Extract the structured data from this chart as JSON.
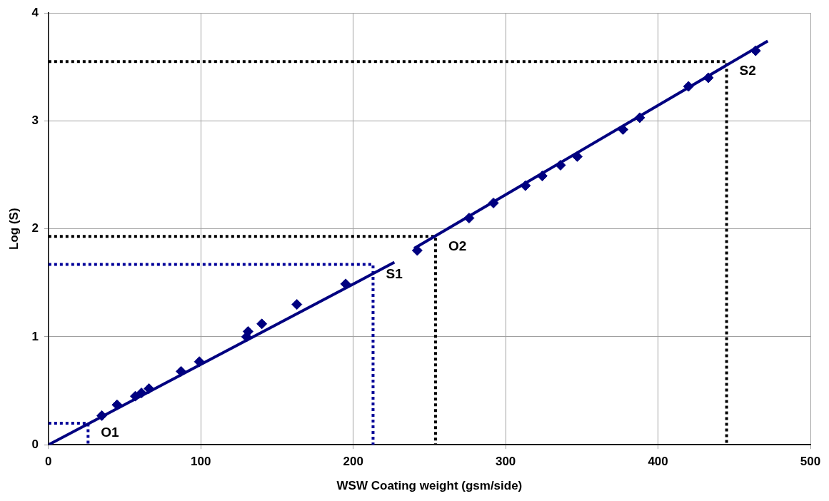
{
  "chart_data": {
    "type": "scatter",
    "xlabel": "WSW Coating weight (gsm/side)",
    "ylabel": "Log (S)",
    "xlim": [
      0,
      500
    ],
    "xticks": [
      0,
      100,
      200,
      300,
      400,
      500
    ],
    "ylim": [
      0,
      4
    ],
    "yticks": [
      0,
      1,
      2,
      3,
      4
    ],
    "grid": true,
    "legend": false,
    "series": [
      {
        "type": "scatter",
        "color": "#000080",
        "marker": "diamond",
        "x": [
          35,
          45,
          57,
          61,
          66,
          87,
          99,
          130,
          131,
          140,
          163,
          195
        ],
        "values": [
          0.27,
          0.37,
          0.45,
          0.48,
          0.52,
          0.68,
          0.77,
          1.0,
          1.05,
          1.12,
          1.3,
          1.49
        ]
      },
      {
        "type": "scatter",
        "color": "#000080",
        "marker": "diamond",
        "x": [
          242,
          276,
          292,
          313,
          324,
          336,
          347,
          377,
          388,
          420,
          433,
          464
        ],
        "values": [
          1.8,
          2.1,
          2.24,
          2.4,
          2.49,
          2.59,
          2.67,
          2.92,
          3.03,
          3.32,
          3.4,
          3.65
        ]
      },
      {
        "type": "line",
        "color": "#000080",
        "marker": "none",
        "line_style": "solid",
        "x": [
          0,
          227
        ],
        "values": [
          0,
          1.69
        ]
      },
      {
        "type": "line",
        "color": "#000080",
        "marker": "none",
        "line_style": "solid",
        "x": [
          240,
          472
        ],
        "values": [
          1.82,
          3.74
        ]
      },
      {
        "type": "line",
        "color": "#000099",
        "marker": "none",
        "line_style": "dotted",
        "x": [
          0,
          26,
          26
        ],
        "values": [
          0.2,
          0.2,
          0
        ]
      },
      {
        "type": "line",
        "color": "#000099",
        "marker": "none",
        "line_style": "dotted",
        "x": [
          0,
          213,
          213
        ],
        "values": [
          1.67,
          1.67,
          0
        ]
      },
      {
        "type": "line",
        "color": "#000000",
        "marker": "none",
        "line_style": "dotted",
        "x": [
          0,
          254,
          254
        ],
        "values": [
          1.93,
          1.93,
          0
        ]
      },
      {
        "type": "line",
        "color": "#000000",
        "marker": "none",
        "line_style": "dotted",
        "x": [
          0,
          445,
          445
        ],
        "values": [
          3.55,
          3.55,
          0
        ]
      }
    ],
    "annotations": [
      {
        "text": "O1",
        "x": 26,
        "y": 0.2
      },
      {
        "text": "S1",
        "x": 213,
        "y": 1.67
      },
      {
        "text": "O2",
        "x": 254,
        "y": 1.93
      },
      {
        "text": "S2",
        "x": 445,
        "y": 3.55
      }
    ]
  }
}
